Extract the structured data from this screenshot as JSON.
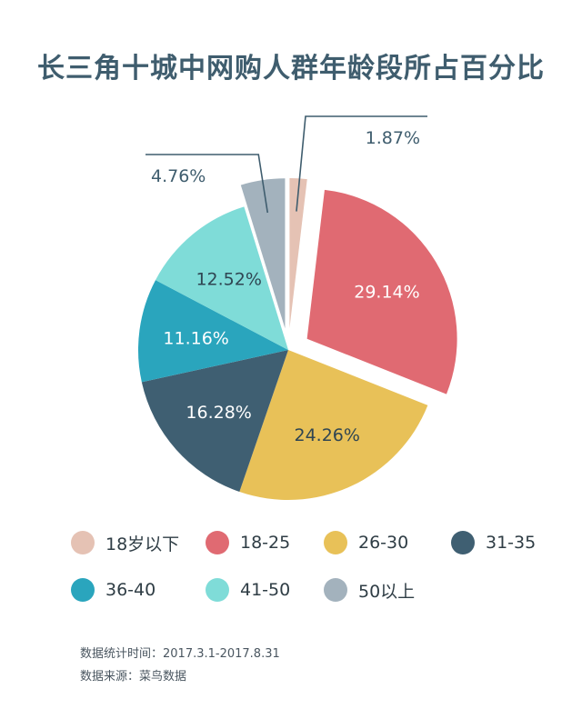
{
  "title": "长三角十城中网购人群年龄段所占百分比",
  "chart_data": {
    "type": "pie",
    "title": "长三角十城中网购人群年龄段所占百分比",
    "slices": [
      {
        "label": "18岁以下",
        "value": 1.87,
        "value_label": "1.87%",
        "color": "#e5c2b4",
        "exploded": true,
        "label_position": "outside"
      },
      {
        "label": "18-25",
        "value": 29.14,
        "value_label": "29.14%",
        "color": "#e06a72",
        "exploded": true,
        "label_position": "inside"
      },
      {
        "label": "26-30",
        "value": 24.26,
        "value_label": "24.26%",
        "color": "#e8c158",
        "exploded": false,
        "label_position": "inside"
      },
      {
        "label": "31-35",
        "value": 16.28,
        "value_label": "16.28%",
        "color": "#3f5f72",
        "exploded": false,
        "label_position": "inside"
      },
      {
        "label": "36-40",
        "value": 11.16,
        "value_label": "11.16%",
        "color": "#2aa5bd",
        "exploded": false,
        "label_position": "inside"
      },
      {
        "label": "41-50",
        "value": 12.52,
        "value_label": "12.52%",
        "color": "#7fdcd8",
        "exploded": false,
        "label_position": "inside"
      },
      {
        "label": "50以上",
        "value": 4.76,
        "value_label": "4.76%",
        "color": "#a3b2bd",
        "exploded": true,
        "label_position": "outside"
      }
    ],
    "legend_position": "bottom"
  },
  "legend": [
    {
      "label": "18岁以下",
      "color": "#e5c2b4"
    },
    {
      "label": "18-25",
      "color": "#e06a72"
    },
    {
      "label": "26-30",
      "color": "#e8c158"
    },
    {
      "label": "31-35",
      "color": "#3f5f72"
    },
    {
      "label": "36-40",
      "color": "#2aa5bd"
    },
    {
      "label": "41-50",
      "color": "#7fdcd8"
    },
    {
      "label": "50以上",
      "color": "#a3b2bd"
    }
  ],
  "footnotes": {
    "period": "数据统计时间：2017.3.1-2017.8.31",
    "source": "数据来源：菜鸟数据"
  }
}
